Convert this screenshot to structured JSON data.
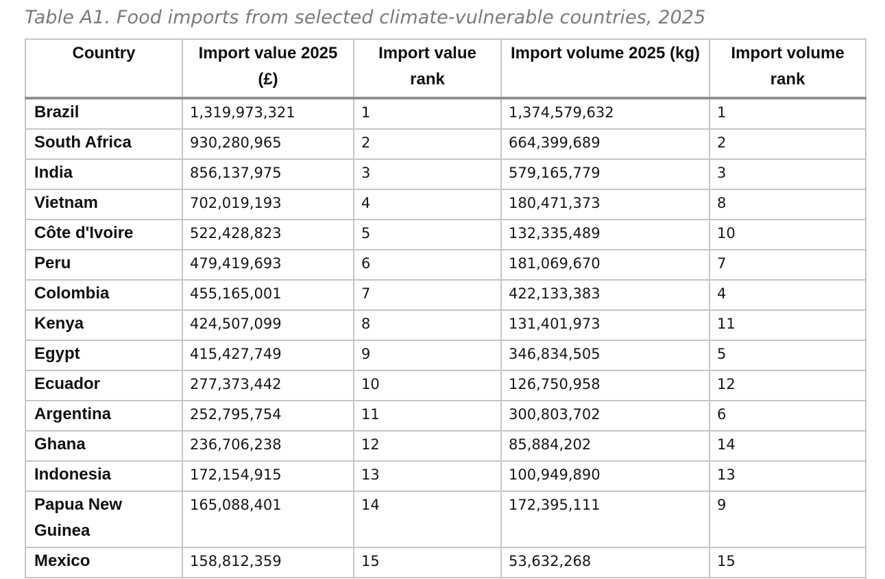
{
  "caption": "Table A1. Food imports from selected climate-vulnerable countries, 2025",
  "table": {
    "headers": [
      "Country",
      "Import value 2025 (£)",
      "Import value rank",
      "Import volume 2025 (kg)",
      "Import volume rank"
    ],
    "rows": [
      {
        "country": "Brazil",
        "value": "1,319,973,321",
        "value_rank": "1",
        "volume": "1,374,579,632",
        "volume_rank": "1"
      },
      {
        "country": "South Africa",
        "value": "930,280,965",
        "value_rank": "2",
        "volume": "664,399,689",
        "volume_rank": "2"
      },
      {
        "country": "India",
        "value": "856,137,975",
        "value_rank": "3",
        "volume": "579,165,779",
        "volume_rank": "3"
      },
      {
        "country": "Vietnam",
        "value": "702,019,193",
        "value_rank": "4",
        "volume": "180,471,373",
        "volume_rank": "8"
      },
      {
        "country": "Côte d'Ivoire",
        "value": "522,428,823",
        "value_rank": "5",
        "volume": "132,335,489",
        "volume_rank": "10"
      },
      {
        "country": "Peru",
        "value": "479,419,693",
        "value_rank": "6",
        "volume": "181,069,670",
        "volume_rank": "7"
      },
      {
        "country": "Colombia",
        "value": "455,165,001",
        "value_rank": "7",
        "volume": "422,133,383",
        "volume_rank": "4"
      },
      {
        "country": "Kenya",
        "value": "424,507,099",
        "value_rank": "8",
        "volume": "131,401,973",
        "volume_rank": "11"
      },
      {
        "country": "Egypt",
        "value": "415,427,749",
        "value_rank": "9",
        "volume": "346,834,505",
        "volume_rank": "5"
      },
      {
        "country": "Ecuador",
        "value": "277,373,442",
        "value_rank": "10",
        "volume": "126,750,958",
        "volume_rank": "12"
      },
      {
        "country": "Argentina",
        "value": "252,795,754",
        "value_rank": "11",
        "volume": "300,803,702",
        "volume_rank": "6"
      },
      {
        "country": "Ghana",
        "value": "236,706,238",
        "value_rank": "12",
        "volume": "85,884,202",
        "volume_rank": "14"
      },
      {
        "country": "Indonesia",
        "value": "172,154,915",
        "value_rank": "13",
        "volume": "100,949,890",
        "volume_rank": "13"
      },
      {
        "country": "Papua New Guinea",
        "value": "165,088,401",
        "value_rank": "14",
        "volume": "172,395,111",
        "volume_rank": "9"
      },
      {
        "country": "Mexico",
        "value": "158,812,359",
        "value_rank": "15",
        "volume": "53,632,268",
        "volume_rank": "15"
      }
    ]
  },
  "colors": {
    "caption": "#7a7a7a",
    "border": "#c6c6c6",
    "header_rule": "#8f8f8f",
    "text": "#111111"
  }
}
